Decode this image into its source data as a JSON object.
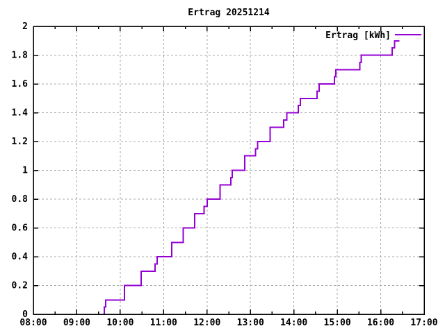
{
  "title": "Ertrag 20251214",
  "legend": {
    "label": "Ertrag [kWh]",
    "position": "inside-top-right"
  },
  "colors": {
    "background": "#ffffff",
    "axis": "#000000",
    "grid": "#a8a8a8",
    "text": "#000000",
    "series": "#9400d3"
  },
  "chart_data": {
    "type": "line",
    "line_style": "steps",
    "title": "Ertrag 20251214",
    "xlabel": "",
    "ylabel": "",
    "xlim": [
      "08:00",
      "17:00"
    ],
    "ylim": [
      0,
      2
    ],
    "grid": true,
    "legend_position": "inside-top-right",
    "x_ticks": [
      "08:00",
      "09:00",
      "10:00",
      "11:00",
      "12:00",
      "13:00",
      "14:00",
      "15:00",
      "16:00",
      "17:00"
    ],
    "x_minor_ticks": [
      "08:30",
      "09:30",
      "10:30",
      "11:30",
      "12:30",
      "13:30",
      "14:30",
      "15:30",
      "16:30"
    ],
    "y_ticks": [
      "0",
      "0.2",
      "0.4",
      "0.6",
      "0.8",
      "1",
      "1.2",
      "1.4",
      "1.6",
      "1.8",
      "2"
    ],
    "series": [
      {
        "name": "Ertrag [kWh]",
        "color": "#9400d3",
        "points": [
          [
            "09:37",
            0
          ],
          [
            "09:38",
            0.05
          ],
          [
            "09:40",
            0.1
          ],
          [
            "10:06",
            0.2
          ],
          [
            "10:29",
            0.3
          ],
          [
            "10:48",
            0.35
          ],
          [
            "10:51",
            0.4
          ],
          [
            "11:11",
            0.5
          ],
          [
            "11:27",
            0.6
          ],
          [
            "11:43",
            0.7
          ],
          [
            "11:56",
            0.75
          ],
          [
            "12:00",
            0.8
          ],
          [
            "12:18",
            0.9
          ],
          [
            "12:33",
            0.95
          ],
          [
            "12:35",
            1.0
          ],
          [
            "12:52",
            1.1
          ],
          [
            "13:07",
            1.15
          ],
          [
            "13:10",
            1.2
          ],
          [
            "13:27",
            1.3
          ],
          [
            "13:46",
            1.35
          ],
          [
            "13:50",
            1.4
          ],
          [
            "14:06",
            1.45
          ],
          [
            "14:09",
            1.5
          ],
          [
            "14:32",
            1.55
          ],
          [
            "14:35",
            1.6
          ],
          [
            "14:56",
            1.65
          ],
          [
            "14:58",
            1.7
          ],
          [
            "15:31",
            1.75
          ],
          [
            "15:33",
            1.8
          ],
          [
            "16:16",
            1.85
          ],
          [
            "16:19",
            1.9
          ],
          [
            "16:26",
            1.9
          ]
        ]
      }
    ]
  }
}
